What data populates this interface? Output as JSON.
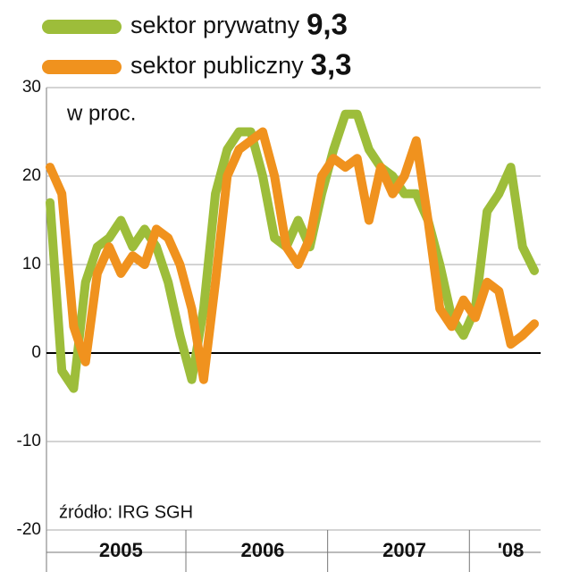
{
  "chart_data": {
    "type": "line",
    "categories": [
      null,
      null,
      null,
      null,
      null,
      null,
      "2005",
      null,
      null,
      null,
      null,
      null,
      null,
      null,
      null,
      null,
      null,
      null,
      "2006",
      null,
      null,
      null,
      null,
      null,
      null,
      null,
      null,
      null,
      null,
      null,
      "2007",
      null,
      null,
      null,
      null,
      null,
      null,
      null,
      null,
      "'08",
      null,
      null
    ],
    "series": [
      {
        "name": "sektor prywatny",
        "last_label": "9,3",
        "color": "#9dbd3a",
        "values": [
          17,
          -2,
          -4,
          8,
          12,
          13,
          15,
          12,
          14,
          12,
          8,
          2,
          -3,
          5,
          18,
          23,
          25,
          25,
          20,
          13,
          12,
          15,
          12,
          18,
          23,
          27,
          27,
          23,
          21,
          20,
          18,
          18,
          15,
          10,
          4,
          2,
          5,
          16,
          18,
          21,
          12,
          9.3
        ]
      },
      {
        "name": "sektor publiczny",
        "last_label": "3,3",
        "color": "#f0921e",
        "values": [
          21,
          18,
          3,
          -1,
          9,
          12,
          9,
          11,
          10,
          14,
          13,
          10,
          5,
          -3,
          8,
          20,
          23,
          24,
          25,
          20,
          12,
          10,
          13,
          20,
          22,
          21,
          22,
          15,
          21,
          18,
          20,
          24,
          15,
          5,
          3,
          6,
          4,
          8,
          7,
          1,
          2,
          3.3
        ]
      }
    ],
    "annotations": [
      "w proc.",
      "źródło: IRG SGH"
    ],
    "ylim": [
      -20,
      30
    ],
    "yticks": [
      -20,
      -10,
      0,
      10,
      20,
      30
    ],
    "grid": true
  }
}
